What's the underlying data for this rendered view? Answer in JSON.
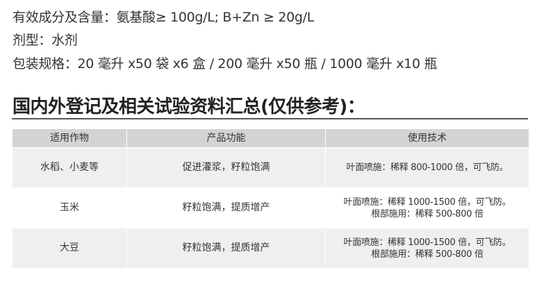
{
  "info": {
    "ingredients": "有效成分及含量：氨基酸≥ 100g/L; B+Zn ≥ 20g/L",
    "formulation": "剂型：水剂",
    "packaging": "包装规格：20 毫升 x50 袋 x6 盒 / 200 毫升 x50 瓶 / 1000 毫升 x10 瓶"
  },
  "heading": "国内外登记及相关试验资料汇总(仅供参考)：",
  "table": {
    "headers": [
      "适用作物",
      "产品功能",
      "使用技术"
    ],
    "rows": [
      {
        "crop": "水稻、小麦等",
        "function": "促进灌浆，籽粒饱满",
        "usage": [
          "叶面喷施：稀释 800-1000 倍，可飞防。"
        ]
      },
      {
        "crop": "玉米",
        "function": "籽粒饱满，提质增产",
        "usage": [
          "叶面喷施：稀释 1000-1500 倍，可飞防。",
          "根部施用：稀释 500-800 倍"
        ]
      },
      {
        "crop": "大豆",
        "function": "籽粒饱满，提质增产",
        "usage": [
          "叶面喷施：稀释 1000-1500 倍，可飞防。",
          "根部施用：稀释 500-800 倍"
        ]
      }
    ]
  }
}
